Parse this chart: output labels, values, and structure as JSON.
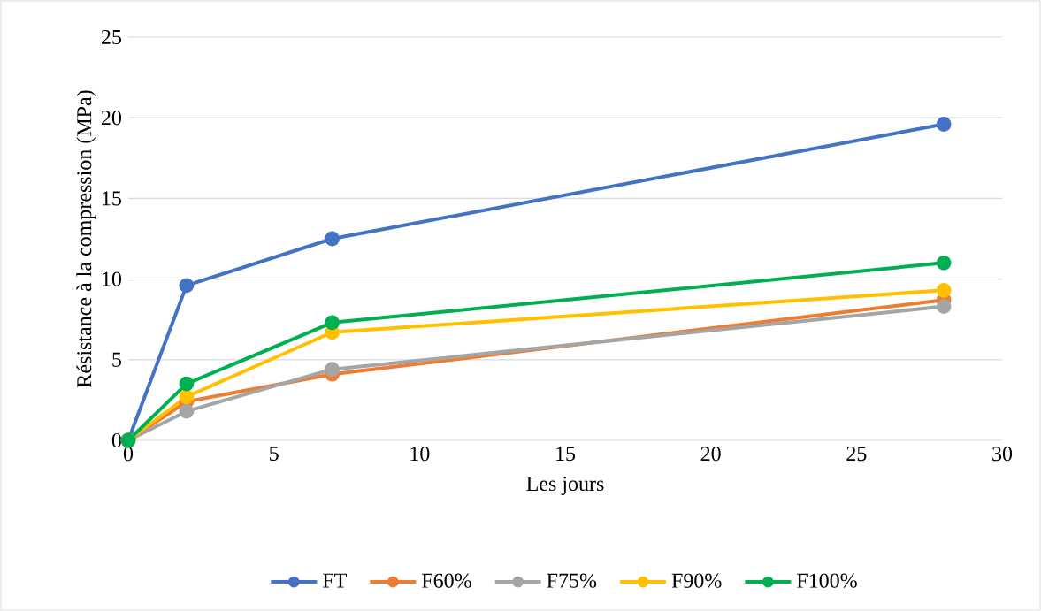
{
  "chart_data": {
    "type": "line",
    "xlabel": "Les jours",
    "ylabel": "Résistance à la compression (MPa)",
    "x": [
      0,
      2,
      7,
      28
    ],
    "series": [
      {
        "name": "FT",
        "color": "#4472c4",
        "values": [
          0,
          9.6,
          12.5,
          19.6
        ]
      },
      {
        "name": "F60%",
        "color": "#ed7d31",
        "values": [
          0,
          2.4,
          4.1,
          8.7
        ]
      },
      {
        "name": "F75%",
        "color": "#a5a5a5",
        "values": [
          0,
          1.8,
          4.4,
          8.3
        ]
      },
      {
        "name": "F90%",
        "color": "#ffc000",
        "values": [
          0,
          2.7,
          6.7,
          9.3
        ]
      },
      {
        "name": "F100%",
        "color": "#00b050",
        "values": [
          0,
          3.5,
          7.3,
          11.0
        ]
      }
    ],
    "xlim": [
      0,
      30
    ],
    "xticks": [
      0,
      5,
      10,
      15,
      20,
      25,
      30
    ],
    "ylim": [
      0,
      25
    ],
    "yticks": [
      0,
      5,
      10,
      15,
      20,
      25
    ],
    "grid": "y",
    "legend": "bottom",
    "marker": "circle",
    "line_style": "solid"
  }
}
